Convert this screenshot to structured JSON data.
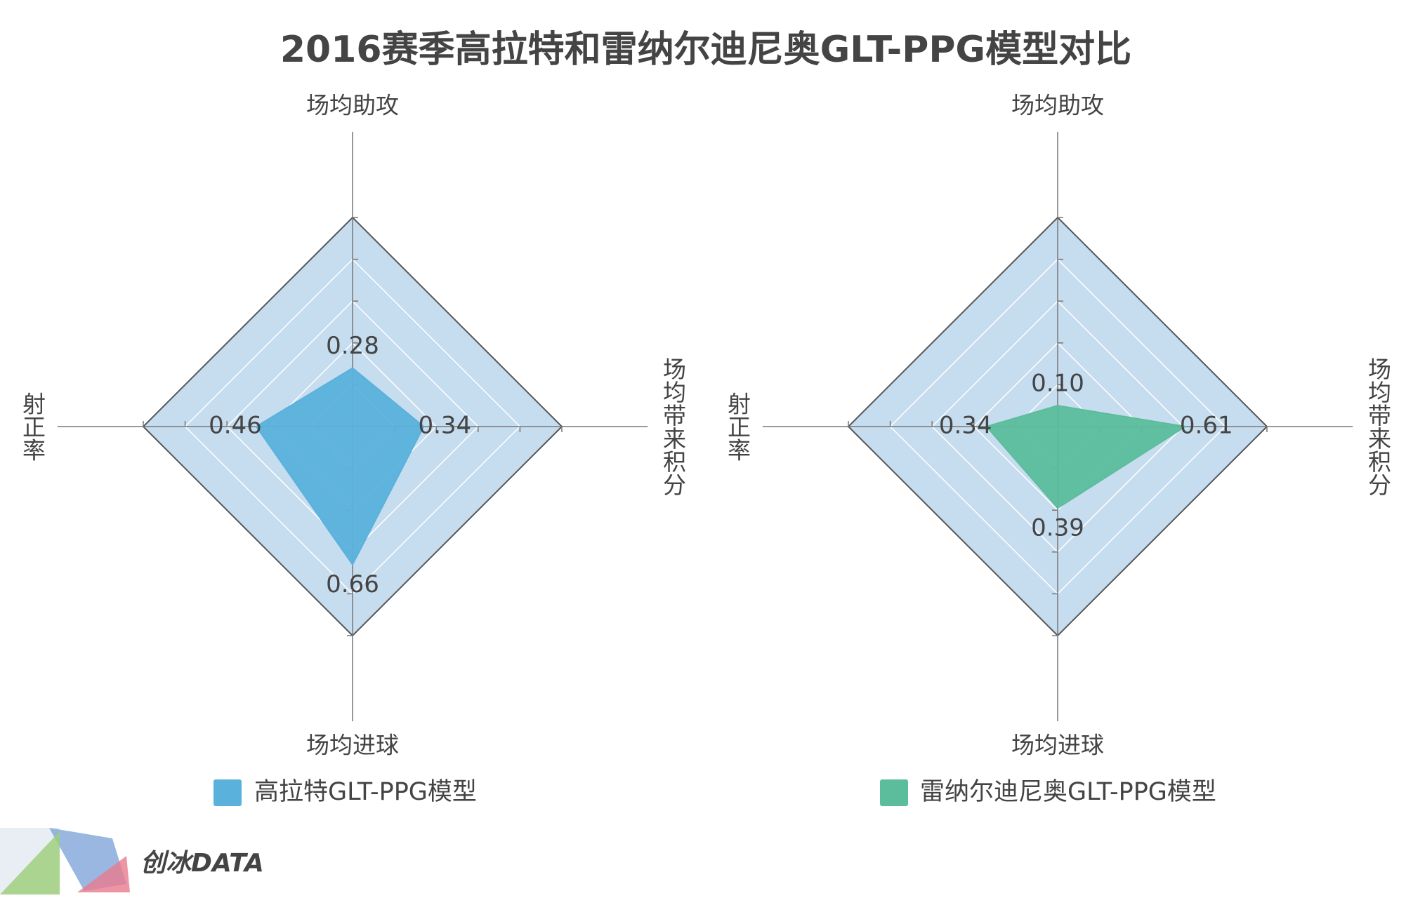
{
  "title": "2016赛季高拉特和雷纳尔迪尼奥GLT-PPG模型对比",
  "watermark": "创冰DATA",
  "chart_data": [
    {
      "type": "radar",
      "categories": [
        "场均助攻",
        "场均带来积分",
        "场均进球",
        "射正率"
      ],
      "series": [
        {
          "name": "高拉特GLT-PPG模型",
          "color": "#5ab1dc",
          "values": [
            0.28,
            0.34,
            0.66,
            0.46
          ],
          "value_labels": [
            "0.28",
            "0.34",
            "0.66",
            "0.46"
          ]
        }
      ],
      "rlim": [
        0,
        1
      ],
      "rticks": [
        0.2,
        0.4,
        0.6,
        0.8,
        1
      ]
    },
    {
      "type": "radar",
      "categories": [
        "场均助攻",
        "场均带来积分",
        "场均进球",
        "射正率"
      ],
      "series": [
        {
          "name": "雷纳尔迪尼奥GLT-PPG模型",
          "color": "#5bbd9b",
          "values": [
            0.1,
            0.61,
            0.39,
            0.34
          ],
          "value_labels": [
            "0.10",
            "0.61",
            "0.39",
            "0.34"
          ]
        }
      ],
      "rlim": [
        0,
        1
      ],
      "rticks": [
        0.2,
        0.4,
        0.6,
        0.8,
        1
      ]
    }
  ]
}
